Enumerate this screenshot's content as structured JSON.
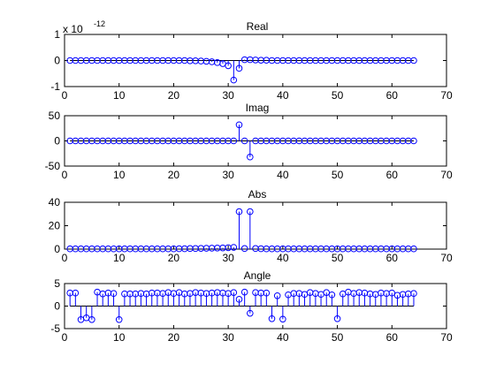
{
  "figure": {
    "background": "#ffffff",
    "stem_color": "#0000ff",
    "baseline_color": "#000000"
  },
  "chart_data": [
    {
      "type": "stem",
      "title": "Real",
      "exponent_label": {
        "base": "x 10",
        "exp": "-12"
      },
      "xlim": [
        0,
        70
      ],
      "ylim": [
        -1,
        1
      ],
      "xticks": [
        "0",
        "10",
        "20",
        "30",
        "40",
        "50",
        "60",
        "70"
      ],
      "xtick_values": [
        0,
        10,
        20,
        30,
        40,
        50,
        60,
        70
      ],
      "yticks": [
        "-1",
        "0",
        "1"
      ],
      "ytick_values": [
        -1,
        0,
        1
      ],
      "x": [
        1,
        2,
        3,
        4,
        5,
        6,
        7,
        8,
        9,
        10,
        11,
        12,
        13,
        14,
        15,
        16,
        17,
        18,
        19,
        20,
        21,
        22,
        23,
        24,
        25,
        26,
        27,
        28,
        29,
        30,
        31,
        32,
        33,
        34,
        35,
        36,
        37,
        38,
        39,
        40,
        41,
        42,
        43,
        44,
        45,
        46,
        47,
        48,
        49,
        50,
        51,
        52,
        53,
        54,
        55,
        56,
        57,
        58,
        59,
        60,
        61,
        62,
        63,
        64
      ],
      "y": [
        0,
        0,
        0,
        0,
        0,
        0,
        0,
        0,
        0,
        0,
        0,
        0,
        0,
        0,
        0,
        0,
        0,
        0,
        0,
        0,
        0,
        0,
        -0.01,
        -0.01,
        -0.02,
        -0.03,
        -0.05,
        -0.08,
        -0.12,
        -0.2,
        -0.75,
        -0.3,
        0.03,
        0.03,
        0.02,
        0.01,
        0.01,
        0,
        0,
        0,
        0,
        0,
        0,
        0,
        0,
        0,
        0,
        0,
        0,
        0,
        0,
        0,
        0,
        0,
        0,
        0,
        0,
        0,
        0,
        0,
        0,
        0,
        0,
        0
      ]
    },
    {
      "type": "stem",
      "title": "Imag",
      "xlim": [
        0,
        70
      ],
      "ylim": [
        -50,
        50
      ],
      "xticks": [
        "0",
        "10",
        "20",
        "30",
        "40",
        "50",
        "60",
        "70"
      ],
      "xtick_values": [
        0,
        10,
        20,
        30,
        40,
        50,
        60,
        70
      ],
      "yticks": [
        "-50",
        "0",
        "50"
      ],
      "ytick_values": [
        -50,
        0,
        50
      ],
      "x": [
        1,
        2,
        3,
        4,
        5,
        6,
        7,
        8,
        9,
        10,
        11,
        12,
        13,
        14,
        15,
        16,
        17,
        18,
        19,
        20,
        21,
        22,
        23,
        24,
        25,
        26,
        27,
        28,
        29,
        30,
        31,
        32,
        33,
        34,
        35,
        36,
        37,
        38,
        39,
        40,
        41,
        42,
        43,
        44,
        45,
        46,
        47,
        48,
        49,
        50,
        51,
        52,
        53,
        54,
        55,
        56,
        57,
        58,
        59,
        60,
        61,
        62,
        63,
        64
      ],
      "y": [
        0,
        0,
        0,
        0,
        0,
        0,
        0,
        0,
        0,
        0,
        0,
        0,
        0,
        0,
        0,
        0,
        0,
        0,
        0,
        0,
        0,
        0,
        0,
        0,
        0,
        0,
        0,
        0,
        0,
        0,
        0,
        32,
        0,
        -32,
        0,
        0,
        0,
        0,
        0,
        0,
        0,
        0,
        0,
        0,
        0,
        0,
        0,
        0,
        0,
        0,
        0,
        0,
        0,
        0,
        0,
        0,
        0,
        0,
        0,
        0,
        0,
        0,
        0,
        0
      ]
    },
    {
      "type": "stem",
      "title": "Abs",
      "xlim": [
        0,
        70
      ],
      "ylim": [
        0,
        40
      ],
      "xticks": [
        "0",
        "10",
        "20",
        "30",
        "40",
        "50",
        "60",
        "70"
      ],
      "xtick_values": [
        0,
        10,
        20,
        30,
        40,
        50,
        60,
        70
      ],
      "yticks": [
        "0",
        "20",
        "40"
      ],
      "ytick_values": [
        0,
        20,
        40
      ],
      "x": [
        1,
        2,
        3,
        4,
        5,
        6,
        7,
        8,
        9,
        10,
        11,
        12,
        13,
        14,
        15,
        16,
        17,
        18,
        19,
        20,
        21,
        22,
        23,
        24,
        25,
        26,
        27,
        28,
        29,
        30,
        31,
        32,
        33,
        34,
        35,
        36,
        37,
        38,
        39,
        40,
        41,
        42,
        43,
        44,
        45,
        46,
        47,
        48,
        49,
        50,
        51,
        52,
        53,
        54,
        55,
        56,
        57,
        58,
        59,
        60,
        61,
        62,
        63,
        64
      ],
      "y": [
        0.2,
        0.2,
        0.2,
        0.2,
        0.2,
        0.2,
        0.2,
        0.2,
        0.2,
        0.2,
        0.2,
        0.2,
        0.2,
        0.2,
        0.2,
        0.2,
        0.2,
        0.2,
        0.2,
        0.2,
        0.3,
        0.3,
        0.5,
        0.5,
        0.6,
        0.7,
        0.8,
        0.9,
        1,
        1.2,
        1.5,
        32,
        0.5,
        32,
        0.5,
        0.3,
        0.2,
        0.2,
        0.2,
        0.2,
        0.2,
        0.2,
        0.2,
        0.2,
        0.2,
        0.2,
        0.2,
        0.2,
        0.2,
        0.2,
        0.2,
        0.2,
        0.2,
        0.2,
        0.2,
        0.2,
        0.2,
        0.2,
        0.2,
        0.2,
        0.2,
        0.2,
        0.2,
        0.2
      ]
    },
    {
      "type": "stem",
      "title": "Angle",
      "xlim": [
        0,
        70
      ],
      "ylim": [
        -5,
        5
      ],
      "xticks": [
        "0",
        "10",
        "20",
        "30",
        "40",
        "50",
        "60",
        "70"
      ],
      "xtick_values": [
        0,
        10,
        20,
        30,
        40,
        50,
        60,
        70
      ],
      "yticks": [
        "-5",
        "0",
        "5"
      ],
      "ytick_values": [
        -5,
        0,
        5
      ],
      "x": [
        1,
        2,
        3,
        4,
        5,
        6,
        7,
        8,
        9,
        10,
        11,
        12,
        13,
        14,
        15,
        16,
        17,
        18,
        19,
        20,
        21,
        22,
        23,
        24,
        25,
        26,
        27,
        28,
        29,
        30,
        31,
        32,
        33,
        34,
        35,
        36,
        37,
        38,
        39,
        40,
        41,
        42,
        43,
        44,
        45,
        46,
        47,
        48,
        49,
        50,
        51,
        52,
        53,
        54,
        55,
        56,
        57,
        58,
        59,
        60,
        61,
        62,
        63,
        64
      ],
      "y": [
        2.9,
        2.9,
        -3.0,
        -2.6,
        -3.0,
        3.1,
        2.7,
        2.9,
        2.8,
        -3.0,
        2.7,
        2.7,
        2.7,
        2.8,
        2.7,
        2.9,
        2.9,
        2.8,
        3.0,
        2.8,
        3.0,
        2.7,
        2.8,
        3.0,
        2.9,
        2.8,
        2.9,
        3.0,
        2.9,
        2.8,
        3.0,
        1.5,
        3.1,
        -1.6,
        3.0,
        2.9,
        2.9,
        -2.8,
        2.3,
        -2.9,
        2.5,
        2.8,
        2.8,
        2.6,
        3.0,
        2.8,
        2.6,
        3.0,
        2.5,
        -2.8,
        2.7,
        3.1,
        2.8,
        3.0,
        2.9,
        2.7,
        2.6,
        2.9,
        2.8,
        2.9,
        2.4,
        2.6,
        2.7,
        2.8
      ]
    }
  ]
}
